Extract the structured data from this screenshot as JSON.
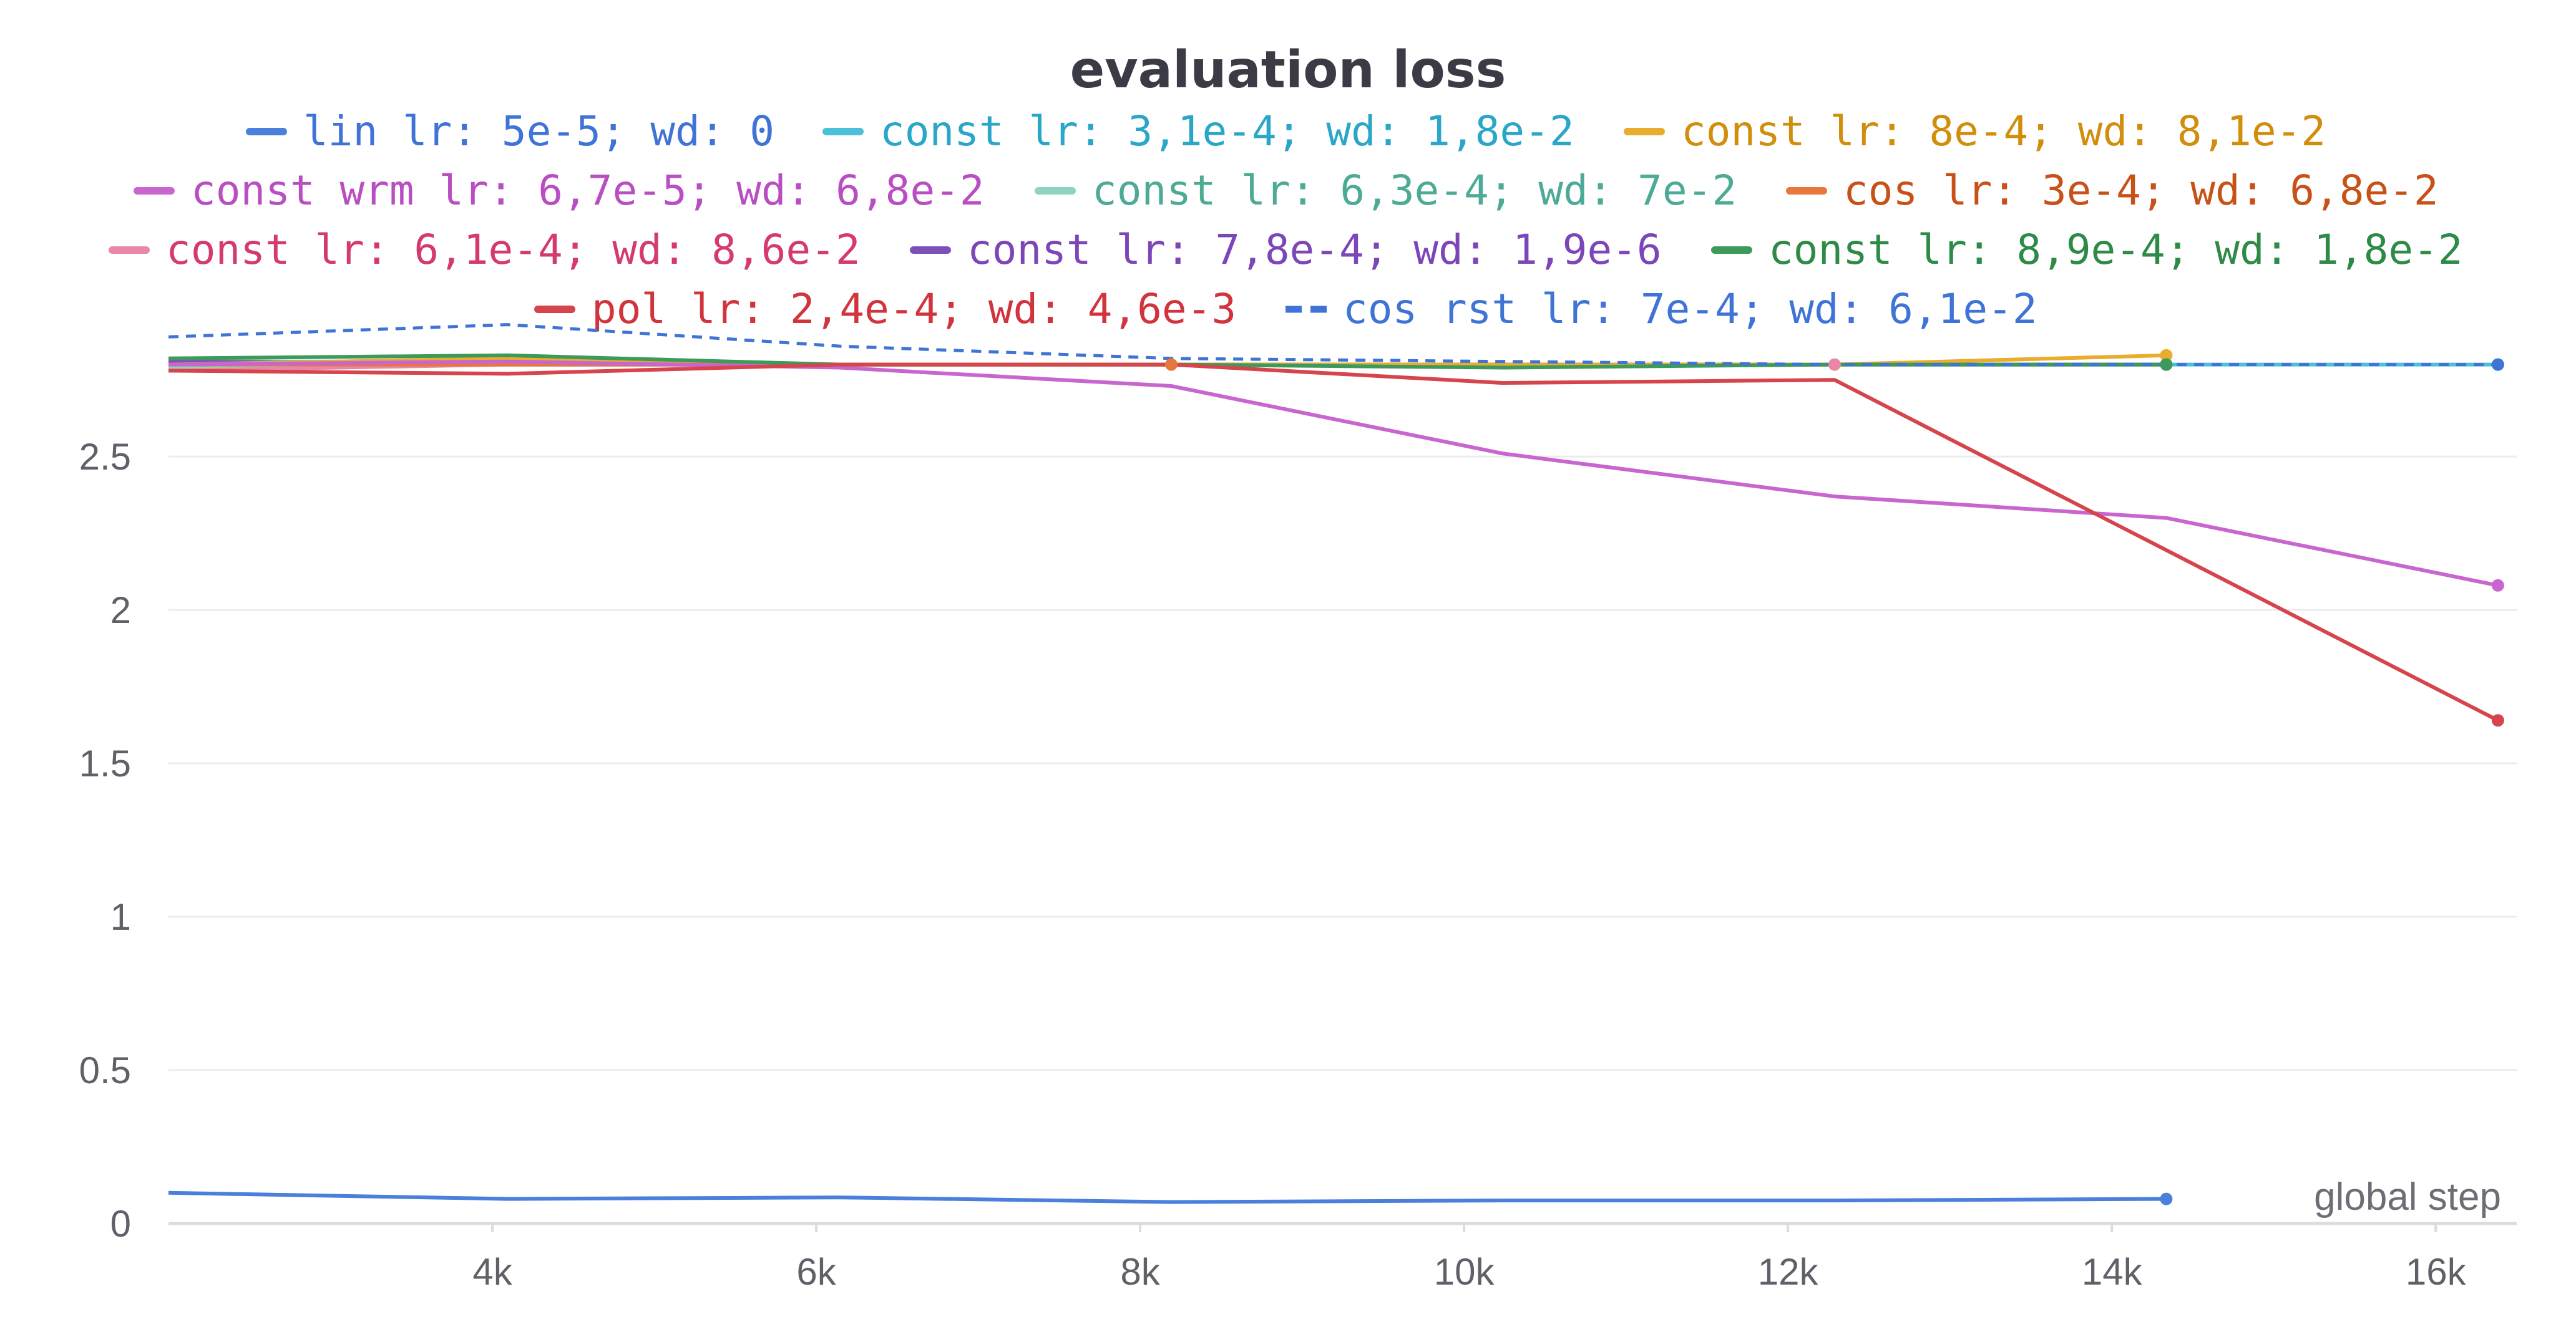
{
  "chart_data": {
    "type": "line",
    "title": "evaluation loss",
    "xlabel": "global step",
    "ylabel": "",
    "xlim": [
      2000,
      16500
    ],
    "ylim": [
      0,
      2.85
    ],
    "x_ticks": [
      4000,
      6000,
      8000,
      10000,
      12000,
      14000,
      16000
    ],
    "x_tick_labels": [
      "4k",
      "6k",
      "8k",
      "10k",
      "12k",
      "14k",
      "16k"
    ],
    "y_ticks": [
      0,
      0.5,
      1,
      1.5,
      2,
      2.5
    ],
    "y_tick_labels": [
      "0",
      "0.5",
      "1",
      "1.5",
      "2",
      "2.5"
    ],
    "grid": true,
    "legend_position": "top",
    "series": [
      {
        "name": "lin lr: 5e-5; wd: 0",
        "color": "#4a7fdb",
        "text_color": "#3f74d6",
        "dash": false,
        "x": [
          2000,
          4096,
          6144,
          8192,
          10240,
          12288,
          14336
        ],
        "y": [
          0.1,
          0.08,
          0.085,
          0.07,
          0.075,
          0.075,
          0.08
        ]
      },
      {
        "name": "const lr: 3,1e-4; wd: 1,8e-2",
        "color": "#4cc0d8",
        "text_color": "#2aa6c8",
        "dash": false,
        "x": [
          2000,
          4096,
          6144,
          8192,
          10240,
          12288,
          14336,
          16384
        ],
        "y": [
          2.81,
          2.81,
          2.8,
          2.8,
          2.8,
          2.8,
          2.8,
          2.8
        ]
      },
      {
        "name": "const lr: 8e-4; wd: 8,1e-2",
        "color": "#e9ac2c",
        "text_color": "#d18e0c",
        "dash": false,
        "x": [
          2000,
          4096,
          6144,
          8192,
          10240,
          12288,
          14336
        ],
        "y": [
          2.8,
          2.82,
          2.8,
          2.8,
          2.8,
          2.8,
          2.83
        ]
      },
      {
        "name": "const wrm lr: 6,7e-5; wd: 6,8e-2",
        "color": "#c865cf",
        "text_color": "#b94ec2",
        "dash": false,
        "x": [
          2000,
          4096,
          6144,
          8192,
          10240,
          12288,
          14336,
          16384
        ],
        "y": [
          2.8,
          2.81,
          2.79,
          2.73,
          2.51,
          2.37,
          2.3,
          2.08
        ]
      },
      {
        "name": "const lr: 6,3e-4; wd: 7e-2",
        "color": "#8fd4c2",
        "text_color": "#4caa96",
        "dash": false,
        "x": [
          2000,
          4096,
          6144,
          8192,
          10240,
          12288,
          14336
        ],
        "y": [
          2.79,
          2.8,
          2.8,
          2.8,
          2.8,
          2.8,
          2.8
        ]
      },
      {
        "name": "cos lr: 3e-4; wd: 6,8e-2",
        "color": "#e8773e",
        "text_color": "#c85118",
        "dash": false,
        "x": [
          2000,
          4096,
          6144,
          8192
        ],
        "y": [
          2.8,
          2.8,
          2.8,
          2.8
        ]
      },
      {
        "name": "const lr: 6,1e-4; wd: 8,6e-2",
        "color": "#e887a8",
        "text_color": "#d43a70",
        "dash": false,
        "x": [
          2000,
          4096,
          6144,
          8192,
          10240,
          12288
        ],
        "y": [
          2.78,
          2.8,
          2.8,
          2.8,
          2.8,
          2.8
        ]
      },
      {
        "name": "const lr: 7,8e-4; wd: 1,9e-6",
        "color": "#7f4fb8",
        "text_color": "#7c46b8",
        "dash": false,
        "x": [
          2000,
          4096,
          6144,
          8192,
          10240,
          12288,
          14336
        ],
        "y": [
          2.81,
          2.8,
          2.8,
          2.8,
          2.8,
          2.8,
          2.8
        ]
      },
      {
        "name": "const lr: 8,9e-4; wd: 1,8e-2",
        "color": "#3d9a5a",
        "text_color": "#2e8a47",
        "dash": false,
        "x": [
          2000,
          4096,
          6144,
          8192,
          10240,
          12288,
          14336
        ],
        "y": [
          2.82,
          2.83,
          2.8,
          2.8,
          2.79,
          2.8,
          2.8
        ]
      },
      {
        "name": "pol lr: 2,4e-4; wd: 4,6e-3",
        "color": "#d6444c",
        "text_color": "#d1343c",
        "dash": false,
        "x": [
          2000,
          4096,
          6144,
          8192,
          10240,
          12288,
          16384
        ],
        "y": [
          2.78,
          2.77,
          2.8,
          2.8,
          2.74,
          2.75,
          1.64
        ]
      },
      {
        "name": "cos rst lr: 7e-4; wd: 6,1e-2",
        "color": "#3f74d6",
        "text_color": "#3f74d6",
        "dash": true,
        "x": [
          2000,
          4096,
          6144,
          8192,
          10240,
          12288,
          14336,
          16384
        ],
        "y": [
          2.89,
          2.93,
          2.86,
          2.82,
          2.81,
          2.8,
          2.8,
          2.8
        ]
      }
    ]
  }
}
